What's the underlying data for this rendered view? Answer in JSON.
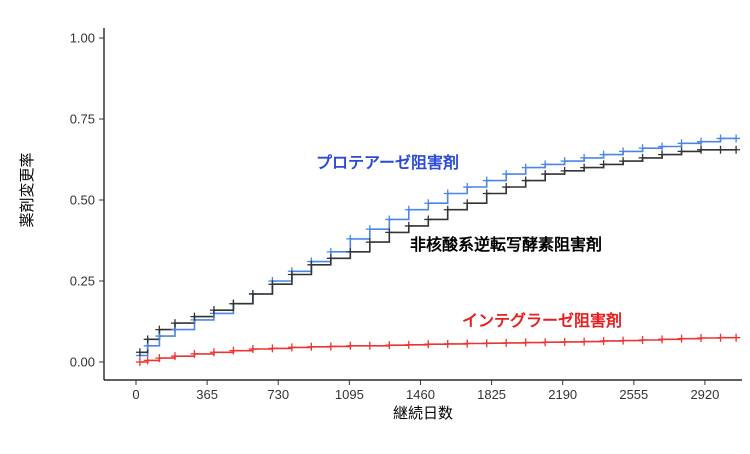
{
  "chart_data": {
    "type": "line",
    "xlabel": "継続日数",
    "ylabel": "薬剤変更率",
    "xlim": [
      -30,
      3120
    ],
    "ylim": [
      0,
      1.0
    ],
    "x_ticks": [
      "0",
      "365",
      "730",
      "1095",
      "1460",
      "1825",
      "2190",
      "2555",
      "2920"
    ],
    "y_ticks": [
      "0.00",
      "0.25",
      "0.50",
      "0.75",
      "1.00"
    ],
    "grid": false,
    "series": [
      {
        "name": "プロテアーゼ阻害剤",
        "color": "#2b4bd6",
        "line_color": "#4a86e8",
        "x": [
          20,
          60,
          120,
          200,
          300,
          400,
          500,
          600,
          700,
          800,
          900,
          1000,
          1100,
          1200,
          1300,
          1400,
          1500,
          1600,
          1700,
          1800,
          1900,
          2000,
          2100,
          2200,
          2300,
          2400,
          2500,
          2600,
          2700,
          2800,
          2900,
          3000,
          3080
        ],
        "values": [
          0.02,
          0.05,
          0.08,
          0.1,
          0.13,
          0.15,
          0.18,
          0.21,
          0.25,
          0.28,
          0.31,
          0.34,
          0.38,
          0.41,
          0.44,
          0.47,
          0.49,
          0.52,
          0.54,
          0.56,
          0.58,
          0.6,
          0.61,
          0.62,
          0.63,
          0.64,
          0.65,
          0.66,
          0.665,
          0.675,
          0.68,
          0.69,
          0.69
        ]
      },
      {
        "name": "非核酸系逆転写酵素阻害剤",
        "color": "#000000",
        "line_color": "#333333",
        "x": [
          20,
          60,
          120,
          200,
          300,
          400,
          500,
          600,
          700,
          800,
          900,
          1000,
          1100,
          1200,
          1300,
          1400,
          1500,
          1600,
          1700,
          1800,
          1900,
          2000,
          2100,
          2200,
          2300,
          2400,
          2500,
          2600,
          2700,
          2800,
          2900,
          3000,
          3080
        ],
        "values": [
          0.03,
          0.07,
          0.1,
          0.12,
          0.14,
          0.16,
          0.18,
          0.21,
          0.24,
          0.27,
          0.3,
          0.32,
          0.34,
          0.37,
          0.4,
          0.42,
          0.44,
          0.47,
          0.49,
          0.52,
          0.54,
          0.56,
          0.58,
          0.59,
          0.6,
          0.61,
          0.62,
          0.63,
          0.64,
          0.65,
          0.655,
          0.655,
          0.655
        ]
      },
      {
        "name": "インテグラーゼ阻害剤",
        "color": "#e61e1e",
        "line_color": "#ee3333",
        "x": [
          20,
          60,
          120,
          200,
          300,
          400,
          500,
          600,
          700,
          800,
          900,
          1000,
          1100,
          1200,
          1300,
          1400,
          1500,
          1600,
          1700,
          1800,
          1900,
          2000,
          2100,
          2200,
          2300,
          2400,
          2500,
          2600,
          2700,
          2800,
          2900,
          3000,
          3080
        ],
        "values": [
          0.0,
          0.005,
          0.012,
          0.018,
          0.025,
          0.03,
          0.035,
          0.04,
          0.042,
          0.045,
          0.047,
          0.048,
          0.05,
          0.05,
          0.052,
          0.053,
          0.055,
          0.056,
          0.057,
          0.058,
          0.059,
          0.06,
          0.061,
          0.062,
          0.063,
          0.065,
          0.066,
          0.068,
          0.07,
          0.072,
          0.074,
          0.075,
          0.075
        ]
      }
    ]
  }
}
